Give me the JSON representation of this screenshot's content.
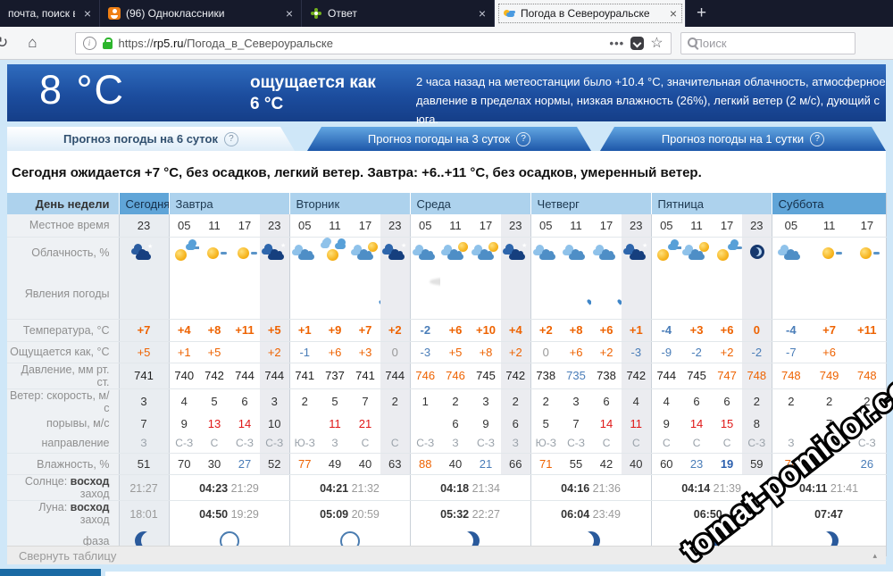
{
  "browser": {
    "tabs": [
      {
        "title": "почта, поиск в интер",
        "icon": ""
      },
      {
        "title": "(96) Одноклассники",
        "icon": "fav-ok"
      },
      {
        "title": "Ответ",
        "icon": "fav-flower"
      },
      {
        "title": "Погода в Североуральске",
        "icon": "fav-weather",
        "active": true
      }
    ],
    "new_tab_label": "+",
    "close_label": "×",
    "url_scheme": "https://",
    "url_domain": "rp5.ru",
    "url_path": "/Погода_в_Североуральске",
    "search_placeholder": "Поиск"
  },
  "header": {
    "temp": "8 °C",
    "feels": "ощущается как 6 °C",
    "description": "2 часа назад на метеостанции было +10.4 °C, значительная облачность, атмосферное давление в пределах нормы, низкая влажность (26%), легкий ветер (2 м/с), дующий с юга."
  },
  "forecast_tabs": [
    {
      "label": "Прогноз погоды на 6 суток",
      "q": "?",
      "active": true
    },
    {
      "label": "Прогноз погоды на 3 суток",
      "q": "?",
      "active": false
    },
    {
      "label": "Прогноз погоды на 1 сутки",
      "q": "?",
      "active": false
    }
  ],
  "summary": "Сегодня ожидается +7 °C, без осадков, легкий ветер. Завтра: +6..+11 °C, без осадков, умеренный ветер.",
  "table": {
    "labels": {
      "day": "День недели",
      "time": "Местное время",
      "cloud": "Облачность, %",
      "phen": "Явления погоды",
      "temp": "Температура, °C",
      "feels": "Ощущается как, °C",
      "press": "Давление, мм рт. ст.",
      "wind": "Ветер: скорость, м/с",
      "gust": "порывы, м/с",
      "dir": "направление",
      "hum": "Влажность, %",
      "sun_p": "Солнце:",
      "rise": "восход",
      "set": "заход",
      "moon_p": "Луна:",
      "phase": "фаза"
    },
    "collapse_label": "Свернуть таблицу",
    "collapse_arrow": "▴",
    "days": [
      {
        "name": "Сегодня",
        "hl": true,
        "today": true,
        "cols": [
          {
            "t": "23",
            "n": 1,
            "ic": "nightcloud",
            "ph": "",
            "temp": [
              "+7",
              "o"
            ],
            "feels": [
              "+5",
              "o"
            ],
            "press": [
              "741",
              ""
            ],
            "spd": "3",
            "gust": [
              "7",
              ""
            ],
            "dir": "З",
            "hum": [
              "51",
              ""
            ]
          }
        ],
        "sun": [
          "",
          "21:27"
        ],
        "moon": [
          "",
          "18:01"
        ],
        "phase": "waning"
      },
      {
        "name": "Завтра",
        "cols": [
          {
            "t": "05",
            "ic": "suncloudlet",
            "ph": "",
            "temp": [
              "+4",
              "o"
            ],
            "feels": [
              "+1",
              "o"
            ],
            "press": [
              "740",
              ""
            ],
            "spd": "4",
            "gust": [
              "9",
              ""
            ],
            "dir": "С-З",
            "hum": [
              "70",
              ""
            ]
          },
          {
            "t": "11",
            "ic": "sun",
            "ph": "",
            "temp": [
              "+8",
              "o"
            ],
            "feels": [
              "+5",
              "o"
            ],
            "press": [
              "742",
              ""
            ],
            "spd": "5",
            "gust": [
              "13",
              "r"
            ],
            "dir": "С",
            "hum": [
              "30",
              ""
            ]
          },
          {
            "t": "17",
            "ic": "sun",
            "ph": "",
            "temp": [
              "+11",
              "o"
            ],
            "feels": [
              "",
              ""
            ],
            "press": [
              "744",
              ""
            ],
            "spd": "6",
            "gust": [
              "14",
              "r"
            ],
            "dir": "С-З",
            "hum": [
              "27",
              "b"
            ]
          },
          {
            "t": "23",
            "n": 1,
            "ic": "nightclouds",
            "ph": "",
            "temp": [
              "+5",
              "o"
            ],
            "feels": [
              "+2",
              "o"
            ],
            "press": [
              "744",
              ""
            ],
            "spd": "3",
            "gust": [
              "10",
              ""
            ],
            "dir": "С-З",
            "hum": [
              "52",
              ""
            ]
          }
        ],
        "sun": [
          "04:23",
          "21:29"
        ],
        "moon": [
          "04:50",
          "19:29"
        ],
        "phase": "new"
      },
      {
        "name": "Вторник",
        "cols": [
          {
            "t": "05",
            "ic": "cloudy",
            "ph": "",
            "temp": [
              "+1",
              "o"
            ],
            "feels": [
              "-1",
              "b"
            ],
            "press": [
              "741",
              ""
            ],
            "spd": "2",
            "gust": [
              "",
              ""
            ],
            "dir": "Ю-З",
            "hum": [
              "77",
              "o"
            ]
          },
          {
            "t": "11",
            "ic": "suncloud",
            "ph": "",
            "temp": [
              "+9",
              "o"
            ],
            "feels": [
              "+6",
              "o"
            ],
            "press": [
              "737",
              ""
            ],
            "spd": "5",
            "gust": [
              "11",
              "r"
            ],
            "dir": "З",
            "hum": [
              "49",
              ""
            ]
          },
          {
            "t": "17",
            "ic": "cloudsun",
            "ph": "drop",
            "temp": [
              "+7",
              "o"
            ],
            "feels": [
              "+3",
              "o"
            ],
            "press": [
              "741",
              ""
            ],
            "spd": "7",
            "gust": [
              "21",
              "r"
            ],
            "dir": "С",
            "hum": [
              "40",
              ""
            ]
          },
          {
            "t": "23",
            "n": 1,
            "ic": "nightclouds",
            "ph": "",
            "temp": [
              "+2",
              "o"
            ],
            "feels": [
              "0",
              "g"
            ],
            "press": [
              "744",
              ""
            ],
            "spd": "2",
            "gust": [
              "",
              ""
            ],
            "dir": "С",
            "hum": [
              "63",
              ""
            ]
          }
        ],
        "sun": [
          "04:21",
          "21:32"
        ],
        "moon": [
          "05:09",
          "20:59"
        ],
        "phase": "new"
      },
      {
        "name": "Среда",
        "cols": [
          {
            "t": "05",
            "ic": "cloudy",
            "ph": "fog",
            "temp": [
              "-2",
              "b"
            ],
            "feels": [
              "-3",
              "b"
            ],
            "press": [
              "746",
              "o"
            ],
            "spd": "1",
            "gust": [
              "",
              ""
            ],
            "dir": "С-З",
            "hum": [
              "88",
              "o"
            ]
          },
          {
            "t": "11",
            "ic": "cloudsun",
            "ph": "",
            "temp": [
              "+6",
              "o"
            ],
            "feels": [
              "+5",
              "o"
            ],
            "press": [
              "746",
              "o"
            ],
            "spd": "2",
            "gust": [
              "6",
              ""
            ],
            "dir": "З",
            "hum": [
              "40",
              ""
            ]
          },
          {
            "t": "17",
            "ic": "cloudsun",
            "ph": "",
            "temp": [
              "+10",
              "o"
            ],
            "feels": [
              "+8",
              "o"
            ],
            "press": [
              "745",
              ""
            ],
            "spd": "3",
            "gust": [
              "9",
              ""
            ],
            "dir": "С-З",
            "hum": [
              "21",
              "b"
            ]
          },
          {
            "t": "23",
            "n": 1,
            "ic": "nightclouds",
            "ph": "",
            "temp": [
              "+4",
              "o"
            ],
            "feels": [
              "+2",
              "o"
            ],
            "press": [
              "742",
              ""
            ],
            "spd": "2",
            "gust": [
              "6",
              ""
            ],
            "dir": "З",
            "hum": [
              "66",
              ""
            ]
          }
        ],
        "sun": [
          "04:18",
          "21:34"
        ],
        "moon": [
          "05:32",
          "22:27"
        ],
        "phase": "waxing"
      },
      {
        "name": "Четверг",
        "cols": [
          {
            "t": "05",
            "ic": "cloudy",
            "ph": "",
            "temp": [
              "+2",
              "o"
            ],
            "feels": [
              "0",
              "g"
            ],
            "press": [
              "738",
              ""
            ],
            "spd": "2",
            "gust": [
              "5",
              ""
            ],
            "dir": "Ю-З",
            "hum": [
              "71",
              "o"
            ]
          },
          {
            "t": "11",
            "ic": "cloudy",
            "ph": "drops",
            "temp": [
              "+8",
              "o"
            ],
            "feels": [
              "+6",
              "o"
            ],
            "press": [
              "735",
              "b"
            ],
            "spd": "3",
            "gust": [
              "7",
              ""
            ],
            "dir": "С-З",
            "hum": [
              "55",
              ""
            ]
          },
          {
            "t": "17",
            "ic": "cloudy",
            "ph": "drops",
            "temp": [
              "+6",
              "o"
            ],
            "feels": [
              "+2",
              "o"
            ],
            "press": [
              "738",
              ""
            ],
            "spd": "6",
            "gust": [
              "14",
              "r"
            ],
            "dir": "С",
            "hum": [
              "42",
              ""
            ]
          },
          {
            "t": "23",
            "n": 1,
            "ic": "nightclouds",
            "ph": "",
            "temp": [
              "+1",
              "o"
            ],
            "feels": [
              "-3",
              "b"
            ],
            "press": [
              "742",
              ""
            ],
            "spd": "4",
            "gust": [
              "11",
              "r"
            ],
            "dir": "С",
            "hum": [
              "40",
              ""
            ]
          }
        ],
        "sun": [
          "04:16",
          "21:36"
        ],
        "moon": [
          "06:04",
          "23:49"
        ],
        "phase": "waxing"
      },
      {
        "name": "Пятница",
        "cols": [
          {
            "t": "05",
            "ic": "suncloudlet",
            "ph": "",
            "temp": [
              "-4",
              "b"
            ],
            "feels": [
              "-9",
              "b"
            ],
            "press": [
              "744",
              ""
            ],
            "spd": "4",
            "gust": [
              "9",
              ""
            ],
            "dir": "С",
            "hum": [
              "60",
              ""
            ]
          },
          {
            "t": "11",
            "ic": "cloudsun",
            "ph": "",
            "temp": [
              "+3",
              "o"
            ],
            "feels": [
              "-2",
              "b"
            ],
            "press": [
              "745",
              ""
            ],
            "spd": "6",
            "gust": [
              "14",
              "r"
            ],
            "dir": "С",
            "hum": [
              "23",
              "b"
            ]
          },
          {
            "t": "17",
            "ic": "suncloudlet",
            "ph": "",
            "temp": [
              "+6",
              "o"
            ],
            "feels": [
              "+2",
              "o"
            ],
            "press": [
              "747",
              "o"
            ],
            "spd": "6",
            "gust": [
              "15",
              "r"
            ],
            "dir": "С",
            "hum": [
              "19",
              "bbl"
            ]
          },
          {
            "t": "23",
            "n": 1,
            "ic": "moonglobe",
            "ph": "",
            "temp": [
              "0",
              "o"
            ],
            "feels": [
              "-2",
              "b"
            ],
            "press": [
              "748",
              "o"
            ],
            "spd": "2",
            "gust": [
              "8",
              ""
            ],
            "dir": "С-З",
            "hum": [
              "59",
              ""
            ]
          }
        ],
        "sun": [
          "04:14",
          "21:39"
        ],
        "moon": [
          "06:50",
          "-"
        ],
        "phase": "waxing"
      },
      {
        "name": "Суббота",
        "hl": true,
        "cols": [
          {
            "t": "05",
            "ic": "cloudy",
            "ph": "",
            "temp": [
              "-4",
              "b"
            ],
            "feels": [
              "-7",
              "b"
            ],
            "press": [
              "748",
              "o"
            ],
            "spd": "2",
            "gust": [
              "",
              ""
            ],
            "dir": "З",
            "hum": [
              "78",
              "o"
            ]
          },
          {
            "t": "11",
            "ic": "sun",
            "ph": "",
            "temp": [
              "+7",
              "o"
            ],
            "feels": [
              "+6",
              "o"
            ],
            "press": [
              "749",
              "o"
            ],
            "spd": "2",
            "gust": [
              "7",
              ""
            ],
            "dir": "С-З",
            "hum": [
              "",
              ""
            ]
          },
          {
            "t": "17",
            "ic": "sun",
            "ph": "",
            "temp": [
              "+11",
              "o"
            ],
            "feels": [
              "",
              ""
            ],
            "press": [
              "748",
              "o"
            ],
            "spd": "2",
            "gust": [
              "",
              ""
            ],
            "dir": "С-З",
            "hum": [
              "26",
              "b"
            ]
          }
        ],
        "sun": [
          "04:11",
          "21:41"
        ],
        "moon": [
          "07:47",
          ""
        ],
        "phase": "waxing"
      }
    ]
  },
  "watermark": "tomat-pomidor.com"
}
